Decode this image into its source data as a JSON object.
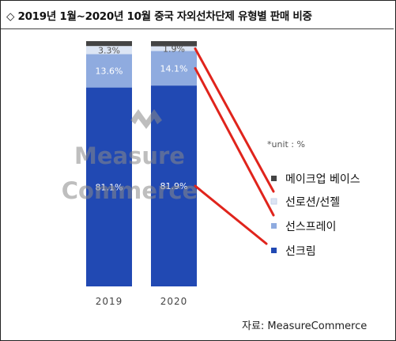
{
  "title": "◇ 2019년 1월~2020년 10월 중국 자외선차단제 유형별 판매 비중",
  "unit_note": "*unit : %",
  "source": "자료: MeasureCommerce",
  "watermark": {
    "line1": "Measure",
    "line2": "Commerce"
  },
  "colors": {
    "makeup_base": "#444444",
    "lotion_gel": "#dce5f4",
    "spray": "#8fabdf",
    "cream": "#2149b3",
    "arrow": "#e0241c"
  },
  "chart_data": {
    "type": "bar",
    "stacked": true,
    "categories": [
      "2019",
      "2020"
    ],
    "series": [
      {
        "name": "선크림",
        "values": [
          81.1,
          81.9
        ],
        "labels": [
          "81.1%",
          "81.9%"
        ]
      },
      {
        "name": "선스프레이",
        "values": [
          13.6,
          14.1
        ],
        "labels": [
          "13.6%",
          "14.1%"
        ]
      },
      {
        "name": "선로션/선젤",
        "values": [
          3.3,
          1.9
        ],
        "labels": [
          "3.3%",
          "1.9%"
        ]
      },
      {
        "name": "메이크업 베이스",
        "values": [
          2.0,
          2.1
        ],
        "labels": [
          "",
          ""
        ]
      }
    ],
    "legend": {
      "placement": "right",
      "order": [
        "메이크업 베이스",
        "선로션/선젤",
        "선스프레이",
        "선크림"
      ]
    },
    "ylim": [
      0,
      100
    ],
    "grid": false
  }
}
